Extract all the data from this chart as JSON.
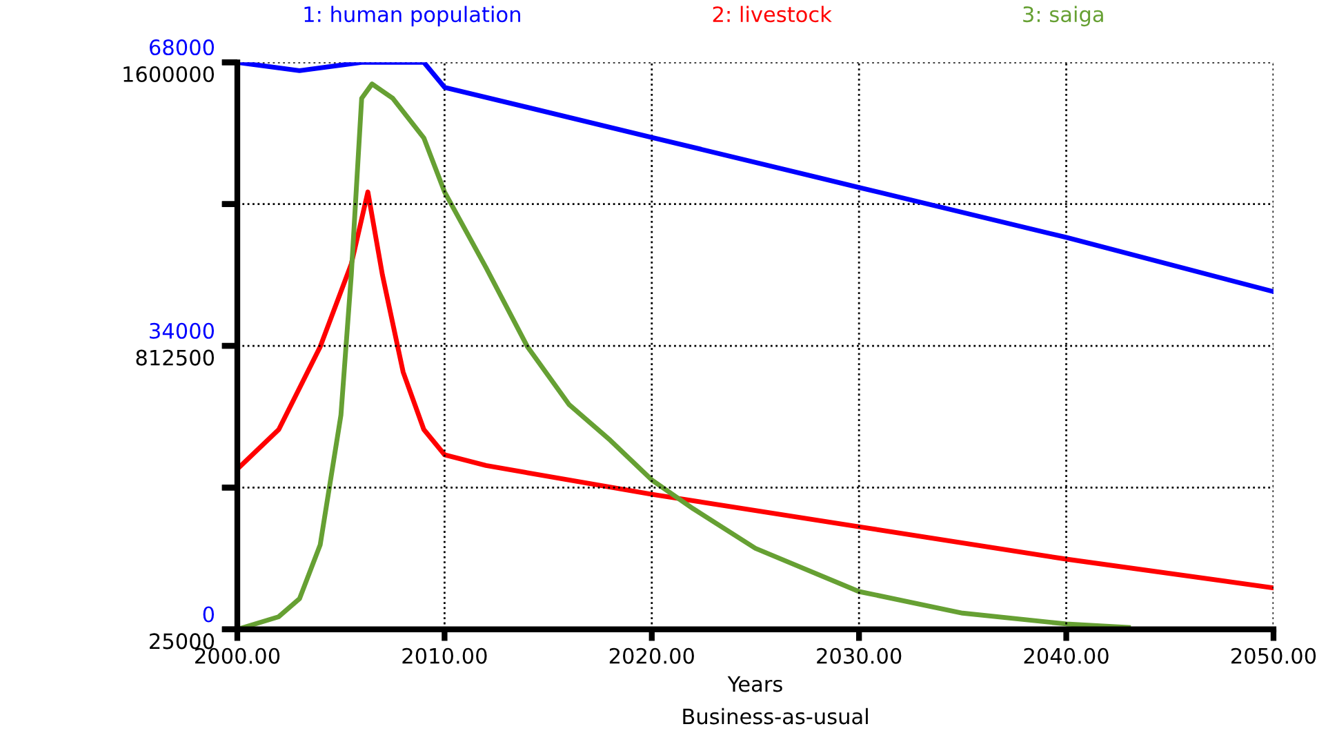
{
  "chart_data": {
    "type": "line",
    "xlabel": "Years",
    "annotations": [
      "Business-as-usual"
    ],
    "xlim": [
      2000,
      2050
    ],
    "xticks": [
      {
        "value": 2000,
        "label": "2000.00"
      },
      {
        "value": 2010,
        "label": "2010.00"
      },
      {
        "value": 2020,
        "label": "2020.00"
      },
      {
        "value": 2030,
        "label": "2030.00"
      },
      {
        "value": 2040,
        "label": "2040.00"
      },
      {
        "value": 2050,
        "label": "2050.00"
      }
    ],
    "ylim": [
      0,
      68000
    ],
    "yticks": [
      0,
      {
        "value": 17000,
        "label": null
      },
      34000,
      {
        "value": 51000,
        "label": null
      },
      68000
    ],
    "y2lim": [
      25000,
      1600000
    ],
    "y2ticks": [
      25000,
      {
        "value": 418750,
        "label": null
      },
      812500,
      {
        "value": 1206250,
        "label": null
      },
      1600000
    ],
    "grid": true,
    "legend": "top",
    "line_style": "solid",
    "marker": "none",
    "series": [
      {
        "name": "1: human population",
        "color": "#0000ff",
        "x": [
          2000,
          2003,
          2006,
          2009,
          2010,
          2020,
          2030,
          2040,
          2050
        ],
        "values": [
          68000,
          67000,
          68000,
          68000,
          65000,
          59000,
          53000,
          47000,
          40500
        ]
      },
      {
        "name": "2: livestock",
        "color": "#ff0000",
        "axis": "y2",
        "x": [
          2000,
          2002,
          2004,
          2005.5,
          2006.3,
          2007,
          2008,
          2009,
          2010,
          2012,
          2020,
          2030,
          2040,
          2050
        ],
        "values": [
          470000,
          580000,
          810000,
          1040000,
          1240000,
          1010000,
          740000,
          580000,
          510000,
          480000,
          400000,
          310000,
          220000,
          140000
        ]
      },
      {
        "name": "3: saiga",
        "color": "#66a033",
        "axis": "y2",
        "x": [
          2000,
          2002,
          2003,
          2004,
          2005,
          2005.5,
          2006,
          2006.5,
          2007.5,
          2009,
          2010,
          2012,
          2014,
          2016,
          2018,
          2020,
          2022,
          2025,
          2030,
          2035,
          2040,
          2043
        ],
        "values": [
          25000,
          60000,
          110000,
          260000,
          620000,
          1010000,
          1500000,
          1540000,
          1500000,
          1390000,
          1240000,
          1030000,
          810000,
          650000,
          550000,
          440000,
          360000,
          250000,
          130000,
          70000,
          40000,
          30000
        ]
      }
    ]
  }
}
